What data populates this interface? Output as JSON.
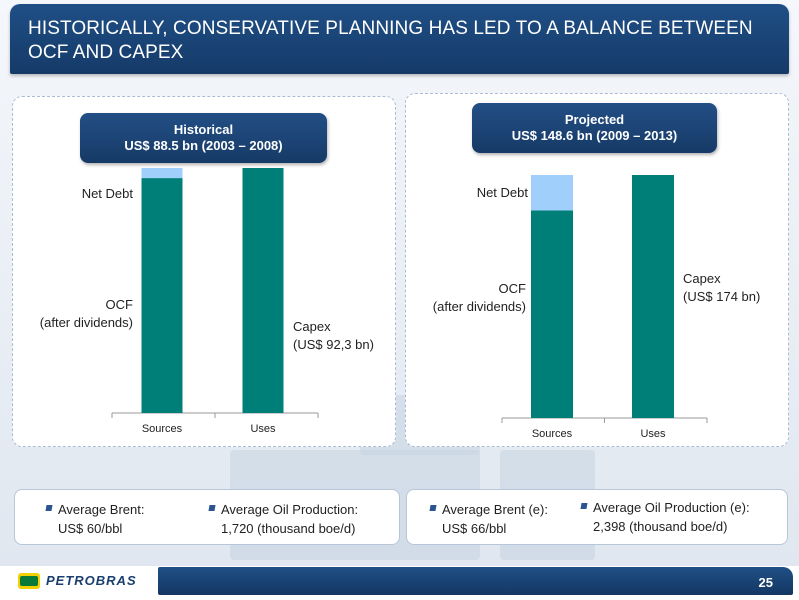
{
  "title": "HISTORICALLY, CONSERVATIVE PLANNING HAS LED TO A BALANCE BETWEEN OCF AND CAPEX",
  "colors": {
    "ocf": "#007f78",
    "net_debt": "#9fcffa",
    "capex": "#007f78",
    "header_bg": "#1b4679"
  },
  "left_panel": {
    "header_line1": "Historical",
    "header_line2": "US$ 88.5 bn (2003 – 2008)",
    "label_net_debt": "Net Debt",
    "label_ocf_line1": "OCF",
    "label_ocf_line2": "(after dividends)",
    "label_capex_line1": "Capex",
    "label_capex_line2": "(US$ 92,3 bn)"
  },
  "right_panel": {
    "header_line1": "Projected",
    "header_line2": "US$ 148.6 bn (2009 – 2013)",
    "label_net_debt": "Net Debt",
    "label_ocf_line1": "OCF",
    "label_ocf_line2": "(after dividends)",
    "label_capex_line1": "Capex",
    "label_capex_line2": "(US$ 174 bn)"
  },
  "chart_data": [
    {
      "type": "bar",
      "stacked": true,
      "title": "Historical US$ 88.5 bn (2003 – 2008)",
      "categories": [
        "Sources",
        "Uses"
      ],
      "series": [
        {
          "name": "OCF (after dividends)",
          "values": [
            88.5,
            0
          ]
        },
        {
          "name": "Net Debt",
          "values": [
            3.8,
            0
          ]
        },
        {
          "name": "Capex (US$ 92,3 bn)",
          "values": [
            0,
            92.3
          ]
        }
      ],
      "ylim": [
        0,
        92.3
      ]
    },
    {
      "type": "bar",
      "stacked": true,
      "title": "Projected US$ 148.6 bn (2009 – 2013)",
      "categories": [
        "Sources",
        "Uses"
      ],
      "series": [
        {
          "name": "OCF (after dividends)",
          "values": [
            148.6,
            0
          ]
        },
        {
          "name": "Net Debt",
          "values": [
            25.4,
            0
          ]
        },
        {
          "name": "Capex (US$ 174 bn)",
          "values": [
            0,
            174
          ]
        }
      ],
      "ylim": [
        0,
        174
      ]
    }
  ],
  "info_left": {
    "brent_label": "Average Brent:",
    "brent_value": "US$ 60/bbl",
    "production_label": "Average Oil Production:",
    "production_value": "1,720 (thousand boe/d)"
  },
  "info_right": {
    "brent_label": "Average Brent (e):",
    "brent_value": "US$ 66/bbl",
    "production_label": "Average Oil Production (e):",
    "production_value": "2,398 (thousand boe/d)"
  },
  "footer": {
    "logo_text": "PETROBRAS",
    "page_number": "25"
  },
  "icons": {
    "logo": "petrobras-br-logo-icon",
    "bullet": "square-bullet-icon"
  }
}
